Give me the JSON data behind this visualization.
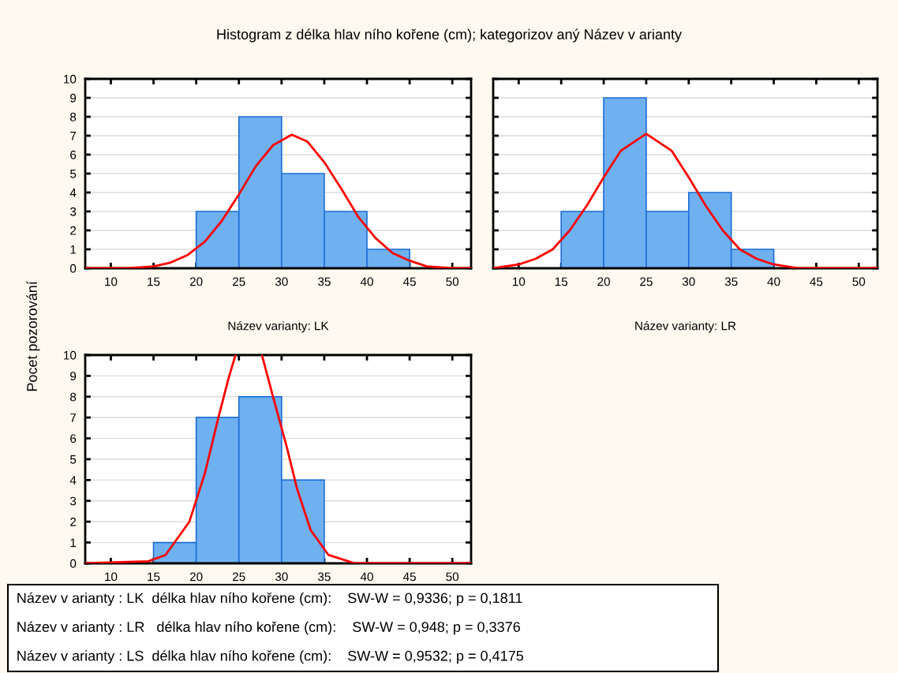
{
  "chart_data": [
    {
      "type": "histogram",
      "title": "Histogram z délka hlav ního kořene (cm); kategorizov aný Název v arianty",
      "ylabel": "Pocet pozorování",
      "xlabel": "Název varianty: LK",
      "bins": [
        20,
        25,
        30,
        35,
        40,
        45
      ],
      "values": [
        3,
        8,
        5,
        3,
        1
      ],
      "color": "#6fb0f0",
      "xlim": [
        7,
        52.2
      ],
      "xticks": [
        10,
        15,
        20,
        25,
        30,
        35,
        40,
        45,
        50
      ],
      "ylim": [
        0,
        10
      ],
      "yticks": [
        0,
        1,
        2,
        3,
        4,
        5,
        6,
        7,
        8,
        9,
        10
      ],
      "grid": "y",
      "series": [
        {
          "type": "line",
          "color": "#ff0000",
          "x": [
            7,
            12,
            15,
            17,
            19,
            21,
            23,
            25,
            27,
            29,
            31.2,
            33,
            35,
            37,
            39,
            41,
            43,
            45,
            47,
            50,
            52.2
          ],
          "values": [
            0.0,
            0.0,
            0.1,
            0.3,
            0.7,
            1.4,
            2.5,
            3.9,
            5.4,
            6.5,
            7.05,
            6.7,
            5.6,
            4.2,
            2.7,
            1.6,
            0.8,
            0.4,
            0.1,
            0.0,
            0.0
          ]
        }
      ]
    },
    {
      "type": "histogram",
      "xlabel": "Název varianty: LR",
      "tick_labels": "x",
      "bins": [
        15,
        20,
        25,
        30,
        35,
        40
      ],
      "values": [
        3,
        9,
        3,
        4,
        1
      ],
      "color": "#6fb0f0",
      "xlim": [
        7,
        52.2
      ],
      "xticks": [
        10,
        15,
        20,
        25,
        30,
        35,
        40,
        45,
        50
      ],
      "ylim": [
        0,
        10
      ],
      "yticks": [
        0,
        1,
        2,
        3,
        4,
        5,
        6,
        7,
        8,
        9,
        10
      ],
      "grid": "y",
      "series": [
        {
          "type": "line",
          "color": "#ff0000",
          "x": [
            7,
            10,
            12,
            14,
            16,
            18,
            20,
            22,
            25,
            28,
            30,
            32,
            34,
            36,
            38,
            40,
            43,
            46,
            52.2
          ],
          "values": [
            0.0,
            0.2,
            0.5,
            1.0,
            2.0,
            3.3,
            4.8,
            6.2,
            7.1,
            6.2,
            4.8,
            3.3,
            2.0,
            1.0,
            0.5,
            0.2,
            0.0,
            0.0,
            0.0
          ]
        }
      ]
    },
    {
      "type": "histogram",
      "bins": [
        15,
        20,
        25,
        30,
        35
      ],
      "values": [
        1,
        7,
        8,
        4
      ],
      "color": "#6fb0f0",
      "xlim": [
        7,
        52.2
      ],
      "xticks": [
        10,
        15,
        20,
        25,
        30,
        35,
        40,
        45,
        50
      ],
      "ylim": [
        0,
        10
      ],
      "yticks": [
        0,
        1,
        2,
        3,
        4,
        5,
        6,
        7,
        8,
        9,
        10
      ],
      "grid": "y",
      "series": [
        {
          "type": "line",
          "color": "#ff0000",
          "x": [
            7,
            14.4,
            16.4,
            19.2,
            21.0,
            22.6,
            23.8,
            24.6,
            26.1,
            27.7,
            29.0,
            30.6,
            31.8,
            33.4,
            35.5,
            38.6,
            52.2
          ],
          "values": [
            0.0,
            0.1,
            0.4,
            2.0,
            4.3,
            7.0,
            8.9,
            10,
            null,
            10,
            8.0,
            5.6,
            3.6,
            1.6,
            0.4,
            0.0,
            0.0
          ]
        }
      ],
      "annotations": [
        "Název v arianty : LK  délka hlav ního kořene (cm):    SW-W = 0,9336; p = 0,1811",
        "Název v arianty : LR   délka hlav ního kořene (cm):    SW-W = 0,948; p = 0,3376",
        "Název v arianty : LS  délka hlav ního kořene (cm):    SW-W = 0,9532; p = 0,4175"
      ]
    }
  ]
}
